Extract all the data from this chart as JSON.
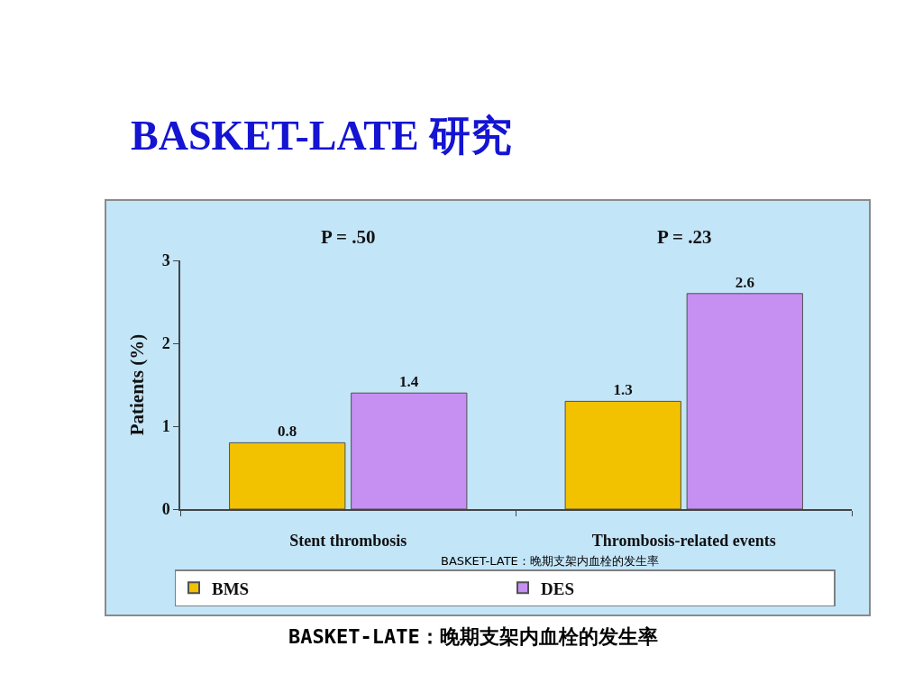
{
  "chart_data": {
    "type": "bar",
    "title": "BASKET-LATE 研究",
    "ylabel": "Patients (%)",
    "categories": [
      "Stent thrombosis",
      "Thrombosis-related events"
    ],
    "series": [
      {
        "name": "BMS",
        "color": "#f2c200",
        "values": [
          0.8,
          1.3
        ]
      },
      {
        "name": "DES",
        "color": "#c68ff2",
        "values": [
          1.4,
          2.6
        ]
      }
    ],
    "ylim": [
      0,
      3
    ],
    "yticks": [
      0,
      1,
      2,
      3
    ],
    "grid": false,
    "legend": "bottom",
    "data_labels": true,
    "annotations": [
      "P = .50",
      "P = .23",
      "BASKET-LATE：晚期支架内血栓的发生率",
      "BASKET-LATE：晚期支架内血栓的发生率"
    ]
  }
}
